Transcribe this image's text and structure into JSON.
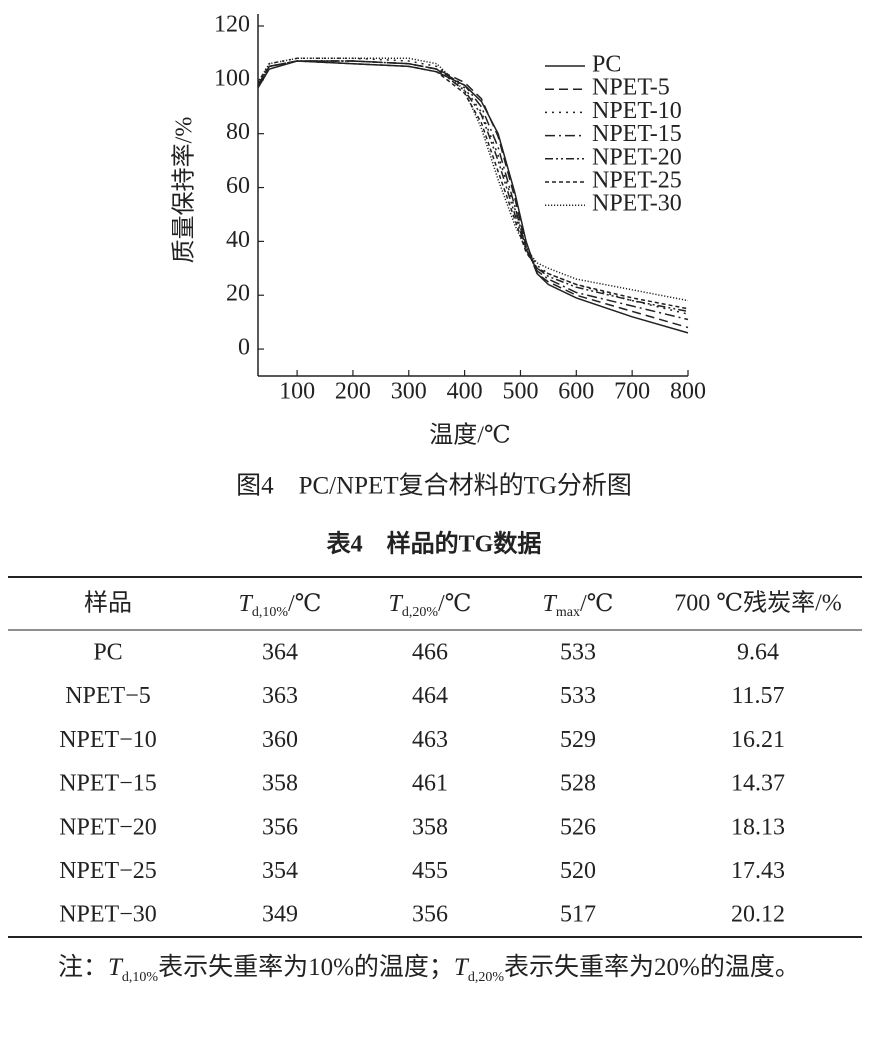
{
  "chart_data": {
    "type": "line",
    "xlabel": "温度/℃",
    "ylabel": "质量保持率/%",
    "x": [
      30,
      50,
      100,
      200,
      300,
      350,
      400,
      430,
      460,
      490,
      510,
      530,
      550,
      600,
      700,
      800
    ],
    "series": [
      {
        "name": "PC",
        "color": "#222222",
        "values": [
          97,
          104,
          107,
          106,
          105,
          103,
          98,
          92,
          80,
          58,
          40,
          28,
          24,
          19,
          12,
          6
        ]
      },
      {
        "name": "NPET-5",
        "color": "#222222",
        "values": [
          98,
          105,
          107,
          107,
          106,
          104,
          99,
          93,
          79,
          56,
          38,
          28,
          25,
          20,
          14,
          8
        ]
      },
      {
        "name": "NPET-10",
        "color": "#222222",
        "values": [
          99,
          106,
          108,
          108,
          107,
          105,
          97,
          88,
          72,
          52,
          38,
          31,
          28,
          24,
          18,
          13
        ]
      },
      {
        "name": "NPET-15",
        "color": "#222222",
        "values": [
          98,
          105,
          107,
          107,
          106,
          104,
          98,
          90,
          75,
          53,
          37,
          29,
          26,
          21,
          16,
          11
        ]
      },
      {
        "name": "NPET-20",
        "color": "#222222",
        "values": [
          98,
          105,
          107,
          107,
          106,
          104,
          96,
          87,
          70,
          50,
          37,
          30,
          27,
          23,
          18,
          14
        ]
      },
      {
        "name": "NPET-25",
        "color": "#222222",
        "values": [
          98,
          105,
          107,
          106,
          105,
          103,
          95,
          84,
          66,
          48,
          36,
          30,
          28,
          24,
          19,
          15
        ]
      },
      {
        "name": "NPET-30",
        "color": "#222222",
        "values": [
          99,
          106,
          108,
          108,
          108,
          106,
          96,
          82,
          63,
          46,
          37,
          32,
          30,
          26,
          22,
          18
        ]
      }
    ],
    "xlim": [
      30,
      800
    ],
    "xticks": [
      100,
      200,
      300,
      400,
      500,
      600,
      700,
      800
    ],
    "ylim": [
      -10,
      120
    ],
    "yticks": [
      0,
      20,
      40,
      60,
      80,
      100,
      120
    ],
    "grid": false,
    "legend": "upper right"
  },
  "caption": "图4　PC/NPET复合材料的TG分析图",
  "table": {
    "title": "表4　样品的TG数据",
    "columns": [
      "样品",
      {
        "symbol": "T",
        "sub": "d,10%",
        "unit": "/℃"
      },
      {
        "symbol": "T",
        "sub": "d,20%",
        "unit": "/℃"
      },
      {
        "symbol": "T",
        "sub": "max",
        "unit": "/℃"
      },
      "700 ℃残炭率/%"
    ],
    "rows": [
      [
        "PC",
        364,
        466,
        533,
        9.64
      ],
      [
        "NPET−5",
        363,
        464,
        533,
        11.57
      ],
      [
        "NPET−10",
        360,
        463,
        529,
        16.21
      ],
      [
        "NPET−15",
        358,
        461,
        528,
        14.37
      ],
      [
        "NPET−20",
        356,
        358,
        526,
        18.13
      ],
      [
        "NPET−25",
        354,
        455,
        520,
        17.43
      ],
      [
        "NPET−30",
        349,
        356,
        517,
        20.12
      ]
    ]
  },
  "note": {
    "label": "注：",
    "items": [
      {
        "symbol": "T",
        "sub": "d,10%",
        "text": "表示失重率为10%的温度；"
      },
      {
        "symbol": "T",
        "sub": "d,20%",
        "text": "表示失重率为20%的温度。"
      }
    ]
  }
}
